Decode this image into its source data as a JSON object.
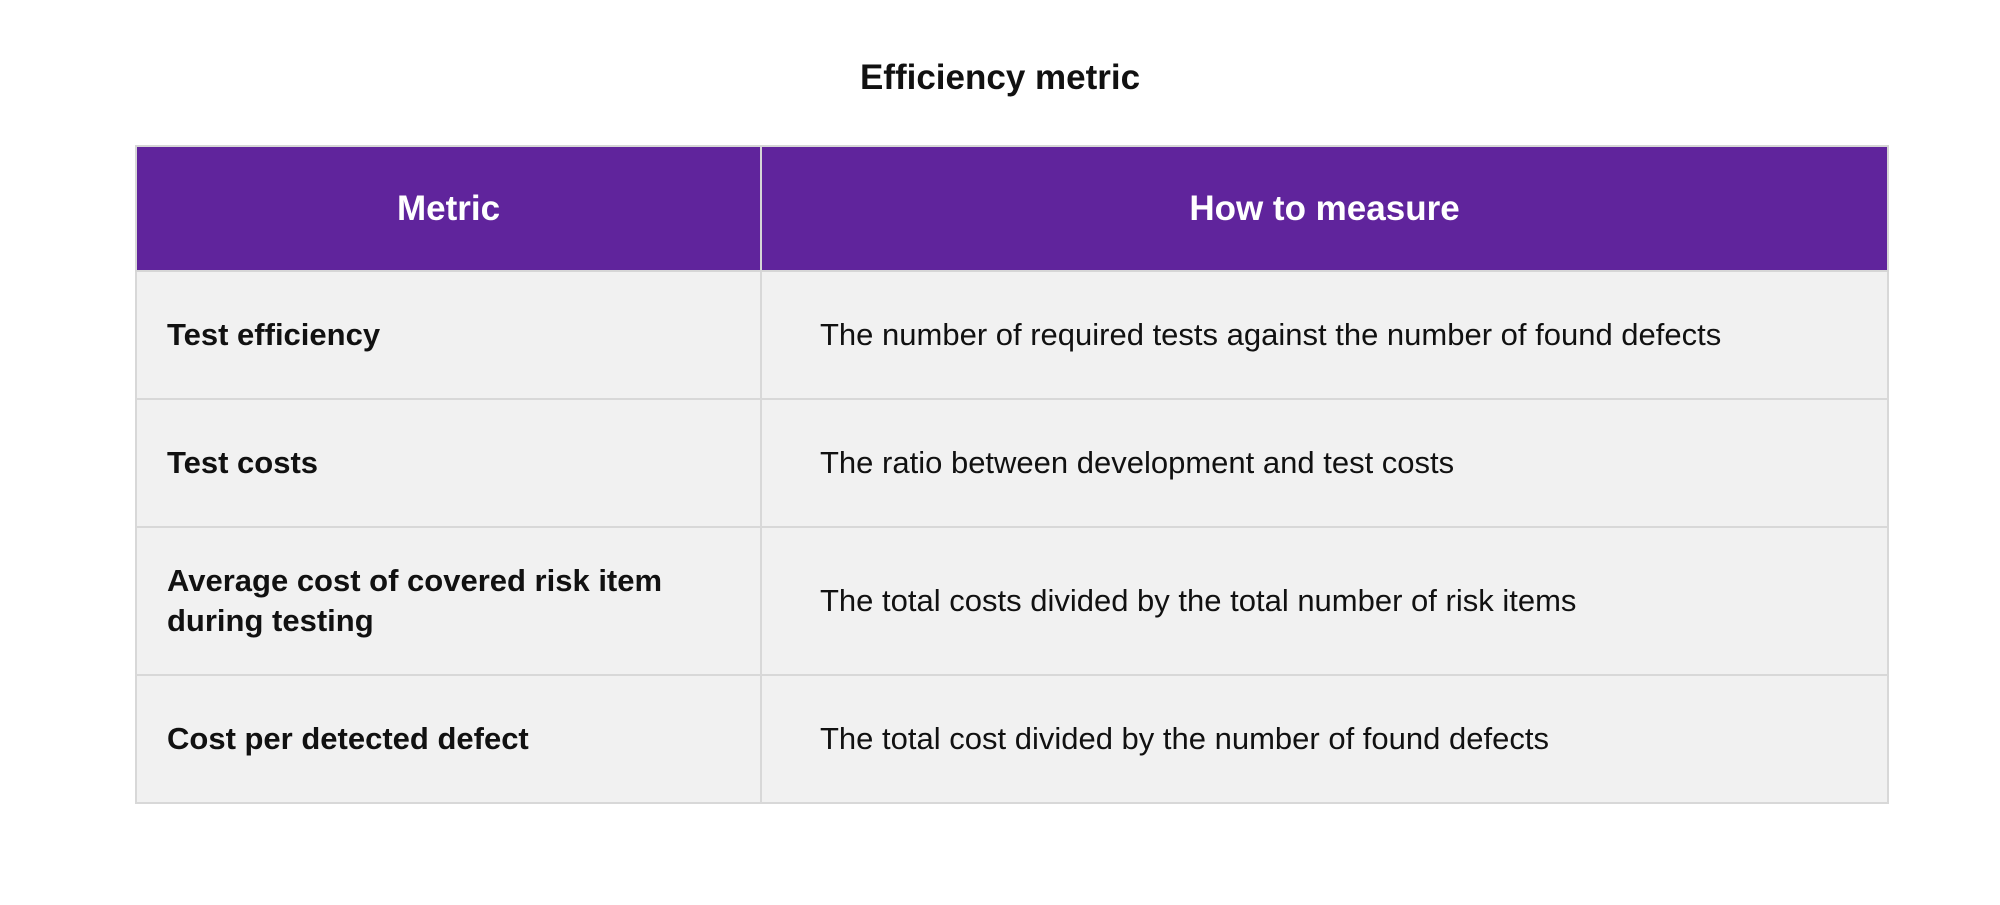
{
  "title": "Efficiency metric",
  "table": {
    "headers": [
      "Metric",
      "How to measure"
    ],
    "rows": [
      {
        "metric": "Test efficiency",
        "how": "The number of required tests against the number of found defects"
      },
      {
        "metric": "Test costs",
        "how": "The ratio between development and test costs"
      },
      {
        "metric": "Average cost of covered risk item during testing",
        "how": "The total costs divided by the total number of risk items"
      },
      {
        "metric": "Cost per detected defect",
        "how": "The total cost divided by the number of found defects"
      }
    ]
  },
  "colors": {
    "header_bg": "#60249c",
    "row_bg": "#f1f1f1",
    "border": "#d8d8d8"
  }
}
